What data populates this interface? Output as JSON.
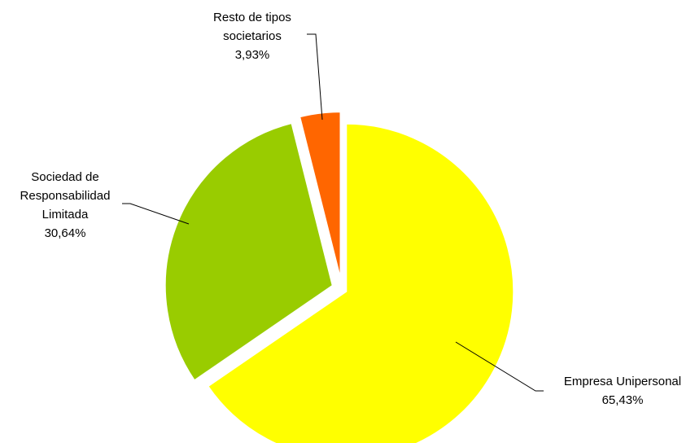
{
  "chart_data": {
    "type": "pie",
    "slices": [
      {
        "label_lines": [
          "Empresa Unipersonal"
        ],
        "value": 65.43,
        "value_label": "65,43%",
        "color": "#FFFF00"
      },
      {
        "label_lines": [
          "Sociedad de",
          "Responsabilidad",
          "Limitada"
        ],
        "value": 30.64,
        "value_label": "30,64%",
        "color": "#99CC00"
      },
      {
        "label_lines": [
          "Resto de tipos",
          "societarios"
        ],
        "value": 3.93,
        "value_label": "3,93%",
        "color": "#FF6600"
      }
    ]
  }
}
